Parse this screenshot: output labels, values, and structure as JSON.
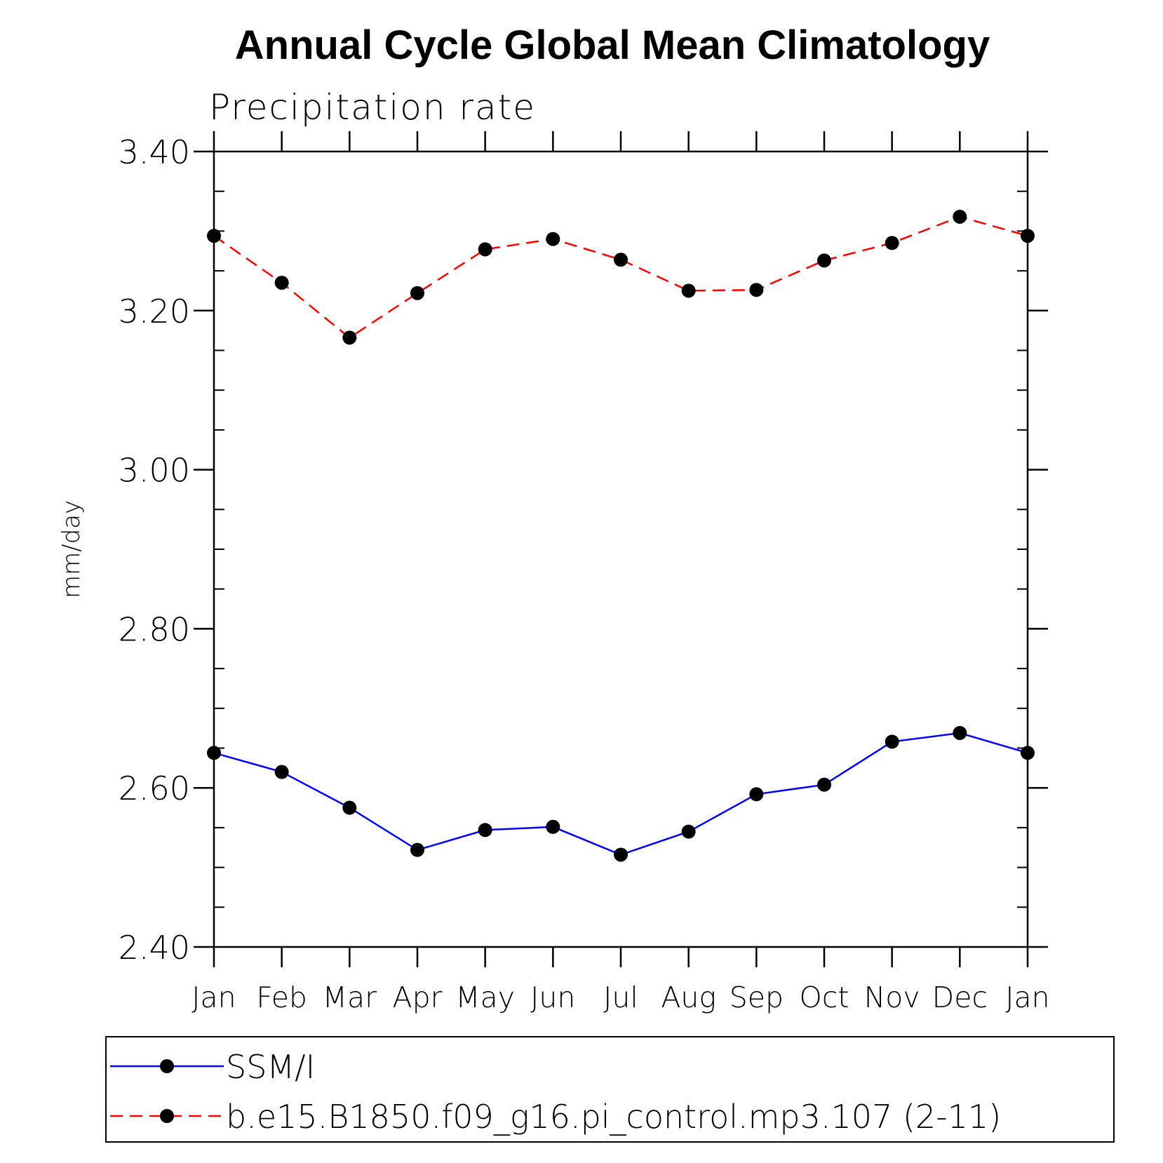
{
  "chart_data": {
    "type": "line",
    "title": "Annual Cycle Global Mean Climatology",
    "subtitle": "Precipitation rate",
    "xlabel": "",
    "ylabel": "mm/day",
    "categories": [
      "Jan",
      "Feb",
      "Mar",
      "Apr",
      "May",
      "Jun",
      "Jul",
      "Aug",
      "Sep",
      "Oct",
      "Nov",
      "Dec",
      "Jan"
    ],
    "ylim": [
      2.4,
      3.4
    ],
    "yticks": [
      "2.40",
      "2.60",
      "2.80",
      "3.00",
      "3.20",
      "3.40"
    ],
    "y_minor_step": 0.05,
    "grid": false,
    "legend_position": "bottom",
    "series": [
      {
        "name": "SSM/I",
        "color": "#0000ff",
        "line_style": "solid",
        "marker": "filled-circle",
        "values": [
          2.644,
          2.62,
          2.575,
          2.522,
          2.547,
          2.551,
          2.516,
          2.545,
          2.592,
          2.604,
          2.658,
          2.669,
          2.644
        ]
      },
      {
        "name": "b.e15.B1850.f09_g16.pi_control.mp3.107 (2-11)",
        "color": "#ff0000",
        "line_style": "dashed",
        "marker": "filled-circle",
        "values": [
          3.294,
          3.235,
          3.166,
          3.222,
          3.277,
          3.29,
          3.264,
          3.225,
          3.226,
          3.263,
          3.285,
          3.318,
          3.294
        ]
      }
    ]
  }
}
